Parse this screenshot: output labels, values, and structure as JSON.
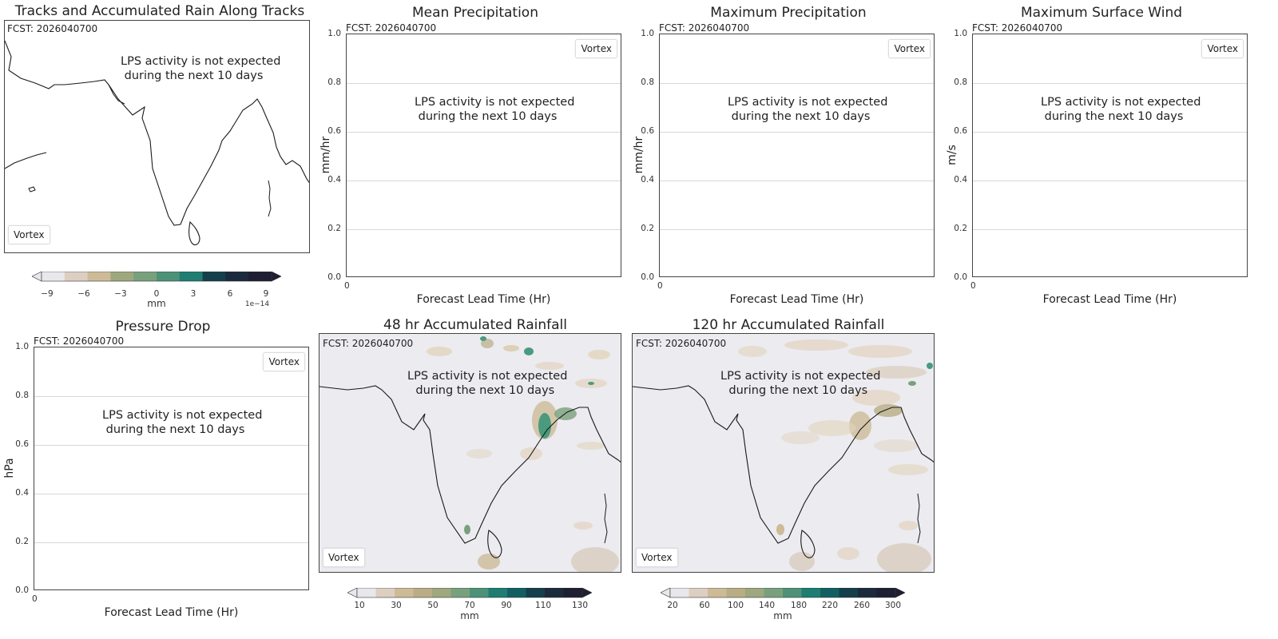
{
  "fcst_label": "FCST: 2026040700",
  "no_lps_msg": "LPS activity is not expected\n during the next 10 days",
  "legend_label": "Vortex",
  "colors": {
    "cmap": [
      "#e8e8ec",
      "#dccfc2",
      "#cdbb98",
      "#b9ad86",
      "#9ea77e",
      "#79a07c",
      "#4d9278",
      "#1f7d72",
      "#125f63",
      "#153f4b",
      "#1b2a3d",
      "#1f1f33"
    ],
    "rain_light": "#e2d3bd",
    "rain_green": "#4a9a7e",
    "map_bg": "#ebebf0"
  },
  "chart_data": [
    {
      "type": "map",
      "title": "Tracks and Accumulated Rain Along Tracks",
      "legend": "Vortex",
      "colorbar": {
        "ticks": [
          "−9",
          "−6",
          "−3",
          "0",
          "3",
          "6",
          "9"
        ],
        "label": "mm",
        "multiplier": "1e−14"
      }
    },
    {
      "type": "line",
      "title": "Mean Precipitation",
      "xlabel": "Forecast Lead Time (Hr)",
      "ylabel": "mm/hr",
      "ylim": [
        0.0,
        1.0
      ],
      "yticks": [
        "0.0",
        "0.2",
        "0.4",
        "0.6",
        "0.8",
        "1.0"
      ],
      "xticks": [
        "0"
      ],
      "series": [],
      "legend": "Vortex"
    },
    {
      "type": "line",
      "title": "Maximum Precipitation",
      "xlabel": "Forecast Lead Time (Hr)",
      "ylabel": "mm/hr",
      "ylim": [
        0.0,
        1.0
      ],
      "yticks": [
        "0.0",
        "0.2",
        "0.4",
        "0.6",
        "0.8",
        "1.0"
      ],
      "xticks": [
        "0"
      ],
      "series": [],
      "legend": "Vortex"
    },
    {
      "type": "line",
      "title": "Maximum Surface Wind",
      "xlabel": "Forecast Lead Time (Hr)",
      "ylabel": "m/s",
      "ylim": [
        0.0,
        1.0
      ],
      "yticks": [
        "0.0",
        "0.2",
        "0.4",
        "0.6",
        "0.8",
        "1.0"
      ],
      "xticks": [
        "0"
      ],
      "series": [],
      "legend": "Vortex"
    },
    {
      "type": "line",
      "title": "Pressure Drop",
      "xlabel": "Forecast Lead Time (Hr)",
      "ylabel": "hPa",
      "ylim": [
        0.0,
        1.0
      ],
      "yticks": [
        "0.0",
        "0.2",
        "0.4",
        "0.6",
        "0.8",
        "1.0"
      ],
      "xticks": [
        "0"
      ],
      "series": [],
      "legend": "Vortex"
    },
    {
      "type": "heatmap",
      "title": "48 hr Accumulated Rainfall",
      "legend": "Vortex",
      "colorbar": {
        "ticks": [
          "10",
          "30",
          "50",
          "70",
          "90",
          "110",
          "130"
        ],
        "label": "mm"
      }
    },
    {
      "type": "heatmap",
      "title": "120 hr Accumulated Rainfall",
      "legend": "Vortex",
      "colorbar": {
        "ticks": [
          "20",
          "60",
          "100",
          "140",
          "180",
          "220",
          "260",
          "300"
        ],
        "label": "mm"
      }
    }
  ]
}
